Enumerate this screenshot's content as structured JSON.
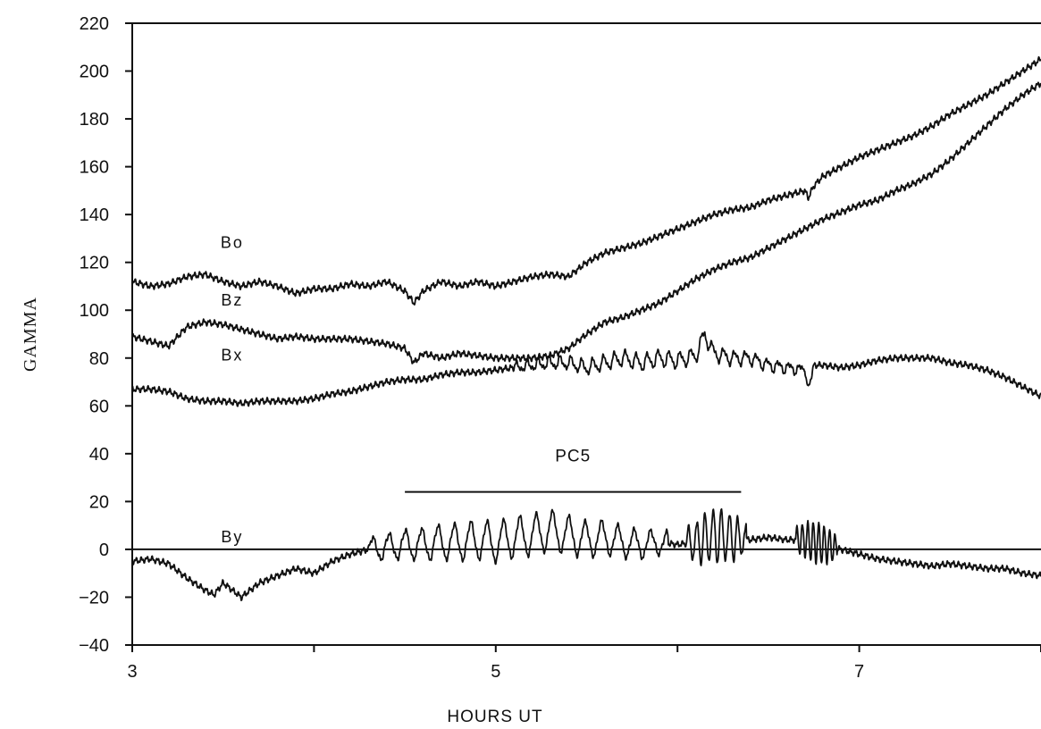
{
  "chart_data": {
    "type": "line",
    "title": "",
    "xlabel": "HOURS UT",
    "ylabel": "GAMMA",
    "xlim": [
      3,
      8
    ],
    "ylim": [
      -40,
      220
    ],
    "x_ticks": [
      3,
      4,
      5,
      6,
      7,
      8
    ],
    "x_tick_labels": [
      "3",
      "",
      "5",
      "",
      "7",
      ""
    ],
    "y_ticks": [
      -40,
      -20,
      0,
      20,
      40,
      60,
      80,
      100,
      120,
      140,
      160,
      180,
      200,
      220
    ],
    "y_tick_labels": [
      "−40",
      "−20",
      "0",
      "20",
      "40",
      "60",
      "80",
      "100",
      "120",
      "140",
      "160",
      "180",
      "200",
      "220"
    ],
    "grid": false,
    "zero_line": true,
    "series": [
      {
        "name": "Bo",
        "x": [
          3.0,
          3.1,
          3.2,
          3.3,
          3.4,
          3.5,
          3.6,
          3.7,
          3.8,
          3.9,
          4.0,
          4.1,
          4.2,
          4.3,
          4.4,
          4.5,
          4.55,
          4.6,
          4.7,
          4.8,
          4.9,
          5.0,
          5.1,
          5.2,
          5.3,
          5.4,
          5.5,
          5.6,
          5.7,
          5.8,
          5.9,
          6.0,
          6.1,
          6.2,
          6.3,
          6.4,
          6.5,
          6.6,
          6.7,
          6.72,
          6.75,
          6.8,
          6.9,
          7.0,
          7.1,
          7.2,
          7.3,
          7.4,
          7.5,
          7.6,
          7.7,
          7.8,
          7.9,
          8.0
        ],
        "y": [
          112,
          110,
          111,
          114,
          115,
          112,
          110,
          112,
          110,
          107,
          109,
          109,
          111,
          110,
          112,
          108,
          103,
          108,
          112,
          110,
          112,
          110,
          112,
          114,
          115,
          114,
          120,
          124,
          126,
          128,
          131,
          134,
          137,
          140,
          142,
          143,
          146,
          148,
          150,
          147,
          152,
          156,
          160,
          164,
          167,
          170,
          173,
          177,
          182,
          186,
          190,
          195,
          200,
          205
        ]
      },
      {
        "name": "Bz",
        "x": [
          3.0,
          3.1,
          3.2,
          3.3,
          3.4,
          3.5,
          3.6,
          3.7,
          3.8,
          3.9,
          4.0,
          4.1,
          4.2,
          4.3,
          4.4,
          4.5,
          4.55,
          4.6,
          4.7,
          4.8,
          4.9,
          5.0,
          5.1,
          5.2,
          5.3,
          5.4,
          5.5,
          5.6,
          5.7,
          5.8,
          5.9,
          6.0,
          6.1,
          6.2,
          6.3,
          6.4,
          6.5,
          6.6,
          6.7,
          6.8,
          6.9,
          7.0,
          7.1,
          7.2,
          7.3,
          7.4,
          7.5,
          7.6,
          7.7,
          7.8,
          7.9,
          8.0
        ],
        "y": [
          89,
          87,
          85,
          93,
          95,
          94,
          92,
          90,
          88,
          89,
          88,
          88,
          88,
          87,
          86,
          84,
          78,
          82,
          80,
          82,
          81,
          80,
          80,
          80,
          81,
          84,
          90,
          95,
          97,
          100,
          103,
          108,
          113,
          117,
          120,
          122,
          126,
          130,
          134,
          138,
          141,
          144,
          146,
          150,
          153,
          157,
          163,
          170,
          177,
          184,
          190,
          195
        ]
      },
      {
        "name": "Bx",
        "x": [
          3.0,
          3.1,
          3.2,
          3.3,
          3.4,
          3.5,
          3.6,
          3.7,
          3.8,
          3.9,
          4.0,
          4.1,
          4.2,
          4.3,
          4.4,
          4.5,
          4.6,
          4.7,
          4.8,
          4.9,
          5.0,
          5.1,
          5.2,
          5.3,
          5.4,
          5.5,
          5.6,
          5.7,
          5.8,
          5.9,
          6.0,
          6.1,
          6.15,
          6.2,
          6.3,
          6.4,
          6.5,
          6.6,
          6.7,
          6.72,
          6.75,
          6.8,
          6.9,
          7.0,
          7.1,
          7.2,
          7.3,
          7.4,
          7.5,
          7.6,
          7.7,
          7.8,
          7.9,
          8.0
        ],
        "y": [
          67,
          67,
          66,
          63,
          62,
          62,
          61,
          62,
          62,
          62,
          63,
          65,
          66,
          68,
          70,
          71,
          71,
          73,
          74,
          74,
          75,
          76,
          77,
          78,
          78,
          76,
          78,
          80,
          78,
          80,
          79,
          81,
          90,
          82,
          80,
          80,
          77,
          76,
          75,
          67,
          77,
          77,
          76,
          77,
          79,
          80,
          80,
          80,
          78,
          77,
          75,
          72,
          68,
          64
        ]
      },
      {
        "name": "By",
        "x": [
          3.0,
          3.1,
          3.2,
          3.3,
          3.4,
          3.45,
          3.5,
          3.55,
          3.6,
          3.7,
          3.8,
          3.9,
          4.0,
          4.1,
          4.2,
          4.3,
          4.4,
          4.5,
          4.6,
          4.7,
          4.8,
          4.9,
          5.0,
          5.1,
          5.2,
          5.3,
          5.4,
          5.5,
          5.6,
          5.7,
          5.8,
          5.9,
          6.0,
          6.1,
          6.2,
          6.3,
          6.4,
          6.5,
          6.6,
          6.7,
          6.8,
          6.9,
          7.0,
          7.1,
          7.2,
          7.3,
          7.4,
          7.5,
          7.6,
          7.7,
          7.8,
          7.9,
          8.0
        ],
        "y": [
          -5,
          -4,
          -6,
          -12,
          -17,
          -19,
          -14,
          -17,
          -20,
          -14,
          -11,
          -8,
          -10,
          -5,
          -2,
          0,
          1,
          2,
          2,
          3,
          3,
          4,
          3,
          5,
          6,
          8,
          6,
          4,
          5,
          3,
          2,
          3,
          2,
          3,
          6,
          5,
          4,
          5,
          4,
          4,
          2,
          0,
          -2,
          -4,
          -5,
          -6,
          -7,
          -6,
          -7,
          -8,
          -8,
          -10,
          -11
        ]
      }
    ],
    "series_labels": [
      {
        "text": "Bo",
        "x": 3.55,
        "y": 126
      },
      {
        "text": "Bz",
        "x": 3.55,
        "y": 102
      },
      {
        "text": "Bx",
        "x": 3.55,
        "y": 79
      },
      {
        "text": "By",
        "x": 3.55,
        "y": 3
      }
    ],
    "annotations": [
      {
        "text": "PC5",
        "x_start": 4.5,
        "x_end": 6.35,
        "y": 24
      }
    ],
    "oscillations": [
      {
        "series": "By",
        "x_start": 4.3,
        "x_end": 5.95,
        "amplitude": 8,
        "period": 0.09
      },
      {
        "series": "By",
        "x_start": 6.05,
        "x_end": 6.38,
        "amplitude": 11,
        "period": 0.045
      },
      {
        "series": "By",
        "x_start": 6.65,
        "x_end": 6.88,
        "amplitude": 8,
        "period": 0.03
      },
      {
        "series": "Bx",
        "x_start": 5.1,
        "x_end": 6.7,
        "amplitude": 3,
        "period": 0.06
      }
    ],
    "colors": {
      "line": "#111111",
      "background": "#ffffff"
    }
  }
}
